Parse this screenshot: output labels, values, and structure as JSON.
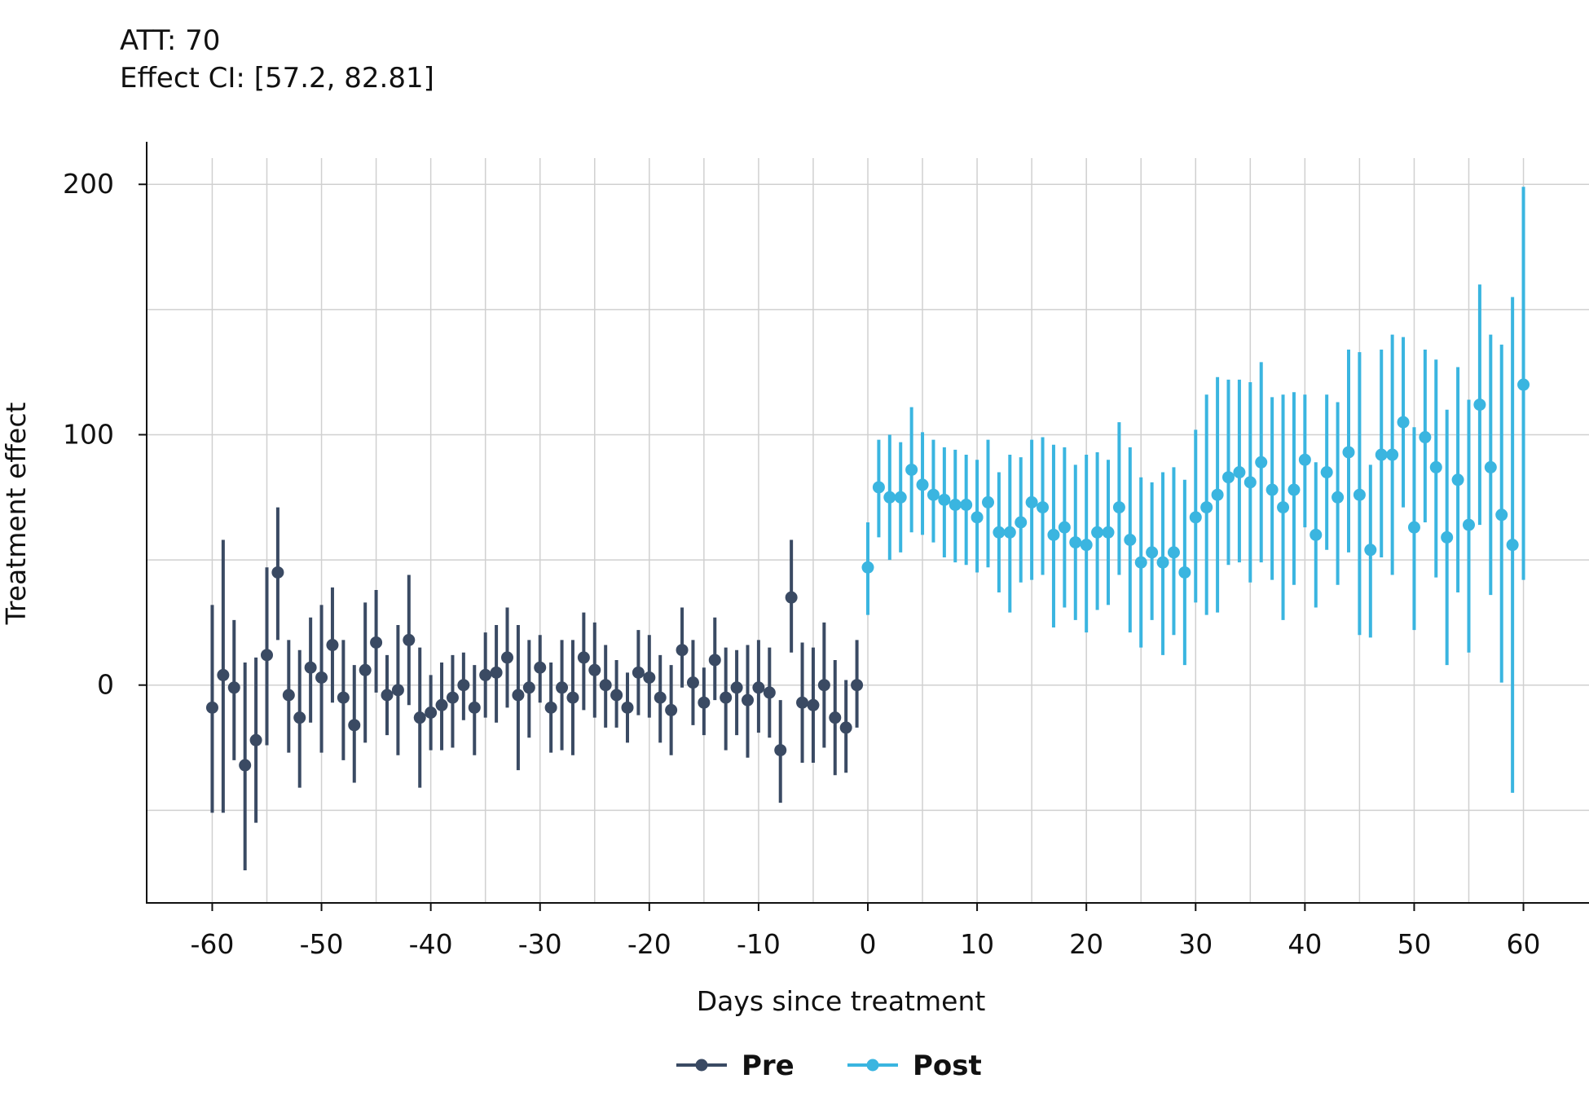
{
  "annotations": {
    "att": "ATT: 70",
    "ci": "Effect CI: [57.2, 82.81]"
  },
  "colors": {
    "pre": "#3a4a63",
    "post": "#3ab5e0",
    "grid": "#d0d0d0",
    "axis": "#111111"
  },
  "chart_data": {
    "type": "scatter",
    "xlabel": "Days since treatment",
    "ylabel": "Treatment effect",
    "xlim": [
      -66,
      66
    ],
    "ylim": [
      -87,
      217
    ],
    "xticks": [
      -60,
      -50,
      -40,
      -30,
      -20,
      -10,
      0,
      10,
      20,
      30,
      40,
      50,
      60
    ],
    "xtick_labels": [
      "-60",
      "-50",
      "-40",
      "-30",
      "-20",
      "-10",
      "0",
      "10",
      "20",
      "30",
      "40",
      "50",
      "60"
    ],
    "yticks": [
      0,
      100,
      200
    ],
    "ytick_labels": [
      "0",
      "100",
      "200"
    ],
    "grid": true,
    "legend": "bottom-center",
    "series": [
      {
        "name": "Pre",
        "x": [
          -60,
          -59,
          -58,
          -57,
          -56,
          -55,
          -54,
          -53,
          -52,
          -51,
          -50,
          -49,
          -48,
          -47,
          -46,
          -45,
          -44,
          -43,
          -42,
          -41,
          -40,
          -39,
          -38,
          -37,
          -36,
          -35,
          -34,
          -33,
          -32,
          -31,
          -30,
          -29,
          -28,
          -27,
          -26,
          -25,
          -24,
          -23,
          -22,
          -21,
          -20,
          -19,
          -18,
          -17,
          -16,
          -15,
          -14,
          -13,
          -12,
          -11,
          -10,
          -9,
          -8,
          -7,
          -6,
          -5,
          -4,
          -3,
          -2,
          -1
        ],
        "y": [
          -9,
          4,
          -1,
          -32,
          -22,
          12,
          45,
          -4,
          -13,
          7,
          3,
          16,
          -5,
          -16,
          6,
          17,
          -4,
          -2,
          18,
          -13,
          -11,
          -8,
          -5,
          0,
          -9,
          4,
          5,
          11,
          -4,
          -1,
          7,
          -9,
          -1,
          -5,
          11,
          6,
          0,
          -4,
          -9,
          5,
          3,
          -5,
          -10,
          14,
          1,
          -7,
          10,
          -5,
          -1,
          -6,
          -1,
          -3,
          -26,
          35,
          -7,
          -8,
          0,
          -13,
          -17,
          0
        ],
        "ci_low": [
          -51,
          -51,
          -30,
          -74,
          -55,
          -24,
          18,
          -27,
          -41,
          -15,
          -27,
          -7,
          -30,
          -39,
          -23,
          -3,
          -20,
          -28,
          -8,
          -41,
          -26,
          -26,
          -25,
          -14,
          -28,
          -13,
          -15,
          -9,
          -34,
          -21,
          -7,
          -27,
          -26,
          -28,
          -10,
          -13,
          -17,
          -17,
          -23,
          -12,
          -13,
          -23,
          -28,
          -1,
          -16,
          -20,
          -6,
          -26,
          -20,
          -29,
          -19,
          -21,
          -47,
          13,
          -31,
          -31,
          -25,
          -36,
          -35,
          -17
        ],
        "ci_high": [
          32,
          58,
          26,
          9,
          11,
          47,
          71,
          18,
          14,
          27,
          32,
          39,
          18,
          8,
          33,
          38,
          12,
          24,
          44,
          15,
          4,
          9,
          12,
          13,
          8,
          21,
          24,
          31,
          24,
          18,
          20,
          9,
          18,
          18,
          29,
          25,
          16,
          10,
          5,
          22,
          20,
          12,
          8,
          31,
          18,
          7,
          27,
          15,
          14,
          16,
          18,
          15,
          -6,
          58,
          17,
          15,
          25,
          10,
          2,
          18
        ]
      },
      {
        "name": "Post",
        "x": [
          0,
          1,
          2,
          3,
          4,
          5,
          6,
          7,
          8,
          9,
          10,
          11,
          12,
          13,
          14,
          15,
          16,
          17,
          18,
          19,
          20,
          21,
          22,
          23,
          24,
          25,
          26,
          27,
          28,
          29,
          30,
          31,
          32,
          33,
          34,
          35,
          36,
          37,
          38,
          39,
          40,
          41,
          42,
          43,
          44,
          45,
          46,
          47,
          48,
          49,
          50,
          51,
          52,
          53,
          54,
          55,
          56,
          57,
          58,
          59,
          60
        ],
        "y": [
          47,
          79,
          75,
          75,
          86,
          80,
          76,
          74,
          72,
          72,
          67,
          73,
          61,
          61,
          65,
          73,
          71,
          60,
          63,
          57,
          56,
          61,
          61,
          71,
          58,
          49,
          53,
          49,
          53,
          45,
          67,
          71,
          76,
          83,
          85,
          81,
          89,
          78,
          71,
          78,
          90,
          60,
          85,
          75,
          93,
          76,
          54,
          92,
          92,
          105,
          63,
          99,
          87,
          59,
          82,
          64,
          112,
          87,
          68,
          56,
          120
        ],
        "ci_low": [
          28,
          59,
          50,
          53,
          61,
          60,
          57,
          51,
          49,
          48,
          45,
          47,
          37,
          29,
          41,
          42,
          44,
          23,
          31,
          26,
          21,
          30,
          32,
          44,
          21,
          15,
          26,
          12,
          20,
          8,
          33,
          28,
          29,
          48,
          49,
          41,
          49,
          42,
          26,
          40,
          63,
          31,
          54,
          40,
          53,
          20,
          19,
          51,
          44,
          71,
          22,
          65,
          43,
          8,
          37,
          13,
          64,
          36,
          1,
          -43,
          42
        ],
        "ci_high": [
          65,
          98,
          100,
          97,
          111,
          101,
          98,
          95,
          94,
          92,
          90,
          98,
          85,
          92,
          91,
          98,
          99,
          96,
          95,
          88,
          92,
          93,
          90,
          105,
          95,
          83,
          81,
          85,
          87,
          82,
          102,
          116,
          123,
          122,
          122,
          121,
          129,
          115,
          116,
          117,
          116,
          89,
          116,
          113,
          134,
          133,
          88,
          134,
          140,
          139,
          103,
          134,
          130,
          110,
          127,
          114,
          160,
          140,
          136,
          155,
          199
        ]
      }
    ]
  }
}
